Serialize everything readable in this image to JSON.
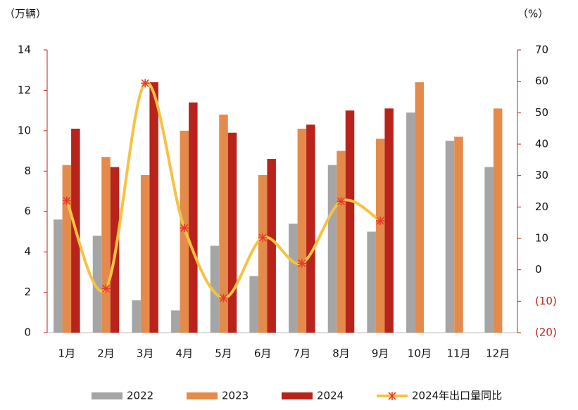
{
  "chart_data": {
    "type": "bar-line",
    "y_label": "（万辆）",
    "y2_label": "（%）",
    "categories": [
      "1月",
      "2月",
      "3月",
      "4月",
      "5月",
      "6月",
      "7月",
      "8月",
      "9月",
      "10月",
      "11月",
      "12月"
    ],
    "series": [
      {
        "name": "2022",
        "color": "#a5a5a5",
        "type": "bar",
        "values": [
          5.6,
          4.8,
          1.6,
          1.1,
          4.3,
          2.8,
          5.4,
          8.3,
          5.0,
          10.9,
          9.5,
          8.2
        ]
      },
      {
        "name": "2023",
        "color": "#e48b4b",
        "type": "bar",
        "values": [
          8.3,
          8.7,
          7.8,
          10.0,
          10.8,
          7.8,
          10.1,
          9.0,
          9.6,
          12.4,
          9.7,
          11.1
        ]
      },
      {
        "name": "2024",
        "color": "#b8231b",
        "type": "bar",
        "values": [
          10.1,
          8.2,
          12.4,
          11.4,
          9.9,
          8.6,
          10.3,
          11.0,
          11.1,
          null,
          null,
          null
        ]
      },
      {
        "name": "2024年出口量同比",
        "color": "#f5c342",
        "marker_color": "#e8392b",
        "type": "line",
        "axis": "y2",
        "values": [
          22,
          -6,
          59.4,
          13.3,
          -9,
          10.2,
          2.1,
          21.8,
          15.6,
          null,
          null,
          null
        ]
      }
    ],
    "ylim": [
      0,
      14
    ],
    "yticks": [
      0,
      2,
      4,
      6,
      8,
      10,
      12,
      14
    ],
    "y2lim": [
      -20,
      70
    ],
    "y2ticks": [
      {
        "value": -20,
        "label": "(20)"
      },
      {
        "value": -10,
        "label": "(10)"
      },
      0,
      10,
      20,
      30,
      40,
      50,
      60,
      70
    ],
    "y2_negative_color": "#c0221b",
    "axis_color": "#c0221b"
  }
}
